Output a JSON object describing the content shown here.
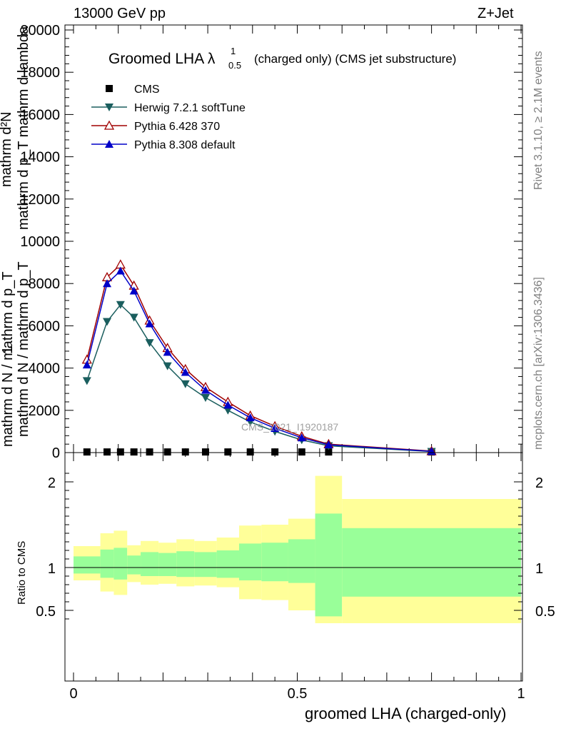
{
  "header": {
    "left": "13000 GeV pp",
    "right": "Z+Jet"
  },
  "side": {
    "rivet": "Rivet 3.1.10, ≥ 2.1M events",
    "mcplots": "mcplots.cern.ch [arXiv:1306.3436]"
  },
  "watermark": "CMS_2021_I1920187",
  "main_ylabel": {
    "num_top": "mathrm d²N",
    "num_bottom": "mathrm d p_T mathrm d lambda",
    "one": "1",
    "den_top": "mathrm d N / mathrm d p_T",
    "den_bottom": "mathrm d N / mathrm d p_T"
  },
  "ratio_ylabel": "Ratio to CMS",
  "xlabel": "groomed LHA (charged-only)",
  "colors": {
    "herwig": "#1a5e5e",
    "pythia6": "#a00000",
    "pythia8": "#0000c8",
    "band_outer": "#ffff99",
    "band_inner": "#99ff99"
  },
  "chart_data": [
    {
      "type": "line",
      "title_main": "Groomed LHA λ",
      "title_sup": "1",
      "title_sub": "0.5",
      "title_rest": "(charged only) (CMS jet substructure)",
      "xlim": [
        0,
        1
      ],
      "ylim": [
        0,
        20000
      ],
      "yticks": [
        0,
        2000,
        4000,
        6000,
        8000,
        10000,
        12000,
        14000,
        16000,
        18000,
        20000
      ],
      "ytick_labels": [
        "0",
        "2000",
        "4000",
        "6000",
        "8000",
        "10000",
        "12000",
        "14000",
        "16000",
        "18000",
        "20000"
      ],
      "legend_position": "top-left",
      "series": [
        {
          "name": "CMS",
          "marker": "square",
          "x": [
            0.03,
            0.075,
            0.105,
            0.135,
            0.17,
            0.21,
            0.25,
            0.295,
            0.345,
            0.395,
            0.45,
            0.51,
            0.57,
            0.8
          ],
          "values": [
            30,
            30,
            30,
            30,
            30,
            30,
            30,
            30,
            30,
            30,
            30,
            30,
            30,
            30
          ]
        },
        {
          "name": "Herwig 7.2.1 softTune",
          "marker": "triangle-down",
          "x": [
            0.03,
            0.075,
            0.105,
            0.135,
            0.17,
            0.21,
            0.25,
            0.295,
            0.345,
            0.395,
            0.45,
            0.51,
            0.57,
            0.8
          ],
          "values": [
            3400,
            6200,
            7000,
            6400,
            5200,
            4100,
            3250,
            2600,
            2000,
            1450,
            1000,
            600,
            320,
            50
          ]
        },
        {
          "name": "Pythia 6.428 370",
          "marker": "triangle-up-open",
          "x": [
            0.03,
            0.075,
            0.105,
            0.135,
            0.17,
            0.21,
            0.25,
            0.295,
            0.345,
            0.395,
            0.45,
            0.51,
            0.57,
            0.8
          ],
          "values": [
            4400,
            8300,
            8900,
            7900,
            6250,
            4950,
            3950,
            3100,
            2400,
            1750,
            1250,
            770,
            400,
            70
          ]
        },
        {
          "name": "Pythia 8.308 default",
          "marker": "triangle-up",
          "x": [
            0.03,
            0.075,
            0.105,
            0.135,
            0.17,
            0.21,
            0.25,
            0.295,
            0.345,
            0.395,
            0.45,
            0.51,
            0.57,
            0.8
          ],
          "values": [
            4150,
            8000,
            8600,
            7650,
            6100,
            4750,
            3800,
            2950,
            2250,
            1650,
            1150,
            700,
            370,
            60
          ]
        }
      ]
    },
    {
      "type": "area",
      "ylabel": "Ratio to CMS",
      "xlabel": "groomed LHA (charged-only)",
      "xlim": [
        0,
        1
      ],
      "ylim": [
        0.35,
        2.25
      ],
      "xticks": [
        0,
        0.5,
        1
      ],
      "xtick_labels": [
        "0",
        "0.5",
        "1"
      ],
      "yticks": [
        0.5,
        1,
        2
      ],
      "ytick_labels": [
        "0.5",
        "1",
        "2"
      ],
      "reference_line": 1,
      "bins": [
        {
          "lo": 0.0,
          "hi": 0.06,
          "outer": [
            0.85,
            1.25
          ],
          "inner": [
            0.93,
            1.13
          ]
        },
        {
          "lo": 0.06,
          "hi": 0.09,
          "outer": [
            0.72,
            1.4
          ],
          "inner": [
            0.88,
            1.21
          ]
        },
        {
          "lo": 0.09,
          "hi": 0.12,
          "outer": [
            0.68,
            1.43
          ],
          "inner": [
            0.86,
            1.23
          ]
        },
        {
          "lo": 0.12,
          "hi": 0.15,
          "outer": [
            0.83,
            1.26
          ],
          "inner": [
            0.92,
            1.14
          ]
        },
        {
          "lo": 0.15,
          "hi": 0.19,
          "outer": [
            0.8,
            1.31
          ],
          "inner": [
            0.9,
            1.18
          ]
        },
        {
          "lo": 0.19,
          "hi": 0.23,
          "outer": [
            0.81,
            1.29
          ],
          "inner": [
            0.9,
            1.17
          ]
        },
        {
          "lo": 0.23,
          "hi": 0.27,
          "outer": [
            0.78,
            1.33
          ],
          "inner": [
            0.89,
            1.19
          ]
        },
        {
          "lo": 0.27,
          "hi": 0.32,
          "outer": [
            0.79,
            1.31
          ],
          "inner": [
            0.89,
            1.18
          ]
        },
        {
          "lo": 0.32,
          "hi": 0.37,
          "outer": [
            0.77,
            1.35
          ],
          "inner": [
            0.88,
            1.2
          ]
        },
        {
          "lo": 0.37,
          "hi": 0.42,
          "outer": [
            0.63,
            1.49
          ],
          "inner": [
            0.85,
            1.28
          ]
        },
        {
          "lo": 0.42,
          "hi": 0.48,
          "outer": [
            0.62,
            1.5
          ],
          "inner": [
            0.84,
            1.29
          ]
        },
        {
          "lo": 0.48,
          "hi": 0.54,
          "outer": [
            0.5,
            1.57
          ],
          "inner": [
            0.82,
            1.33
          ]
        },
        {
          "lo": 0.54,
          "hi": 0.6,
          "outer": [
            0.35,
            2.07
          ],
          "inner": [
            0.43,
            1.63
          ]
        },
        {
          "lo": 0.6,
          "hi": 1.0,
          "outer": [
            0.35,
            1.8
          ],
          "inner": [
            0.66,
            1.46
          ]
        }
      ]
    }
  ]
}
